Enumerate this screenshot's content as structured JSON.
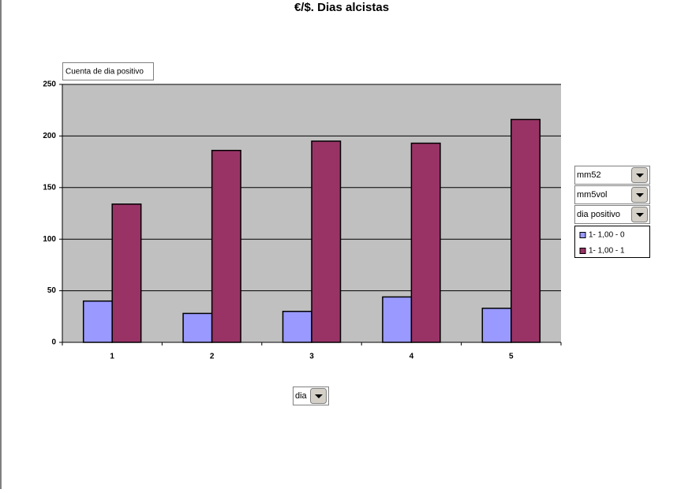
{
  "chart_data": {
    "type": "bar",
    "title": "€/$. Dias alcistas",
    "data_field": "Cuenta de dia positivo",
    "page_fields": [
      "mm52",
      "mm5vol",
      "dia positivo"
    ],
    "category_field": "dia",
    "categories": [
      "1",
      "2",
      "3",
      "4",
      "5"
    ],
    "series": [
      {
        "name": "1- 1,00  - 0",
        "color": "#9999ff",
        "values": [
          40,
          28,
          30,
          44,
          33
        ]
      },
      {
        "name": "1- 1,00  - 1",
        "color": "#993366",
        "values": [
          134,
          186,
          195,
          193,
          216
        ]
      }
    ],
    "ylim": [
      0,
      250
    ],
    "yticks": [
      0,
      50,
      100,
      150,
      200,
      250
    ],
    "grid": true
  }
}
